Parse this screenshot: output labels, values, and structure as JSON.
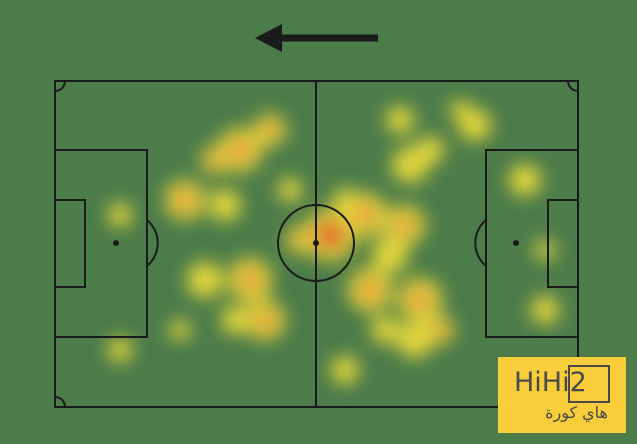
{
  "graphic": {
    "type": "player-heatmap",
    "pitch_color": "#4c7c4a",
    "line_color": "#1a1a1a",
    "heat_colors": [
      "#f5e23a",
      "#f7a93a",
      "#f0602a"
    ],
    "attack_direction": "left"
  },
  "logo": {
    "latin": "HiHi2",
    "arabic": "هاي كورة",
    "background": "#f7cd3b"
  }
}
